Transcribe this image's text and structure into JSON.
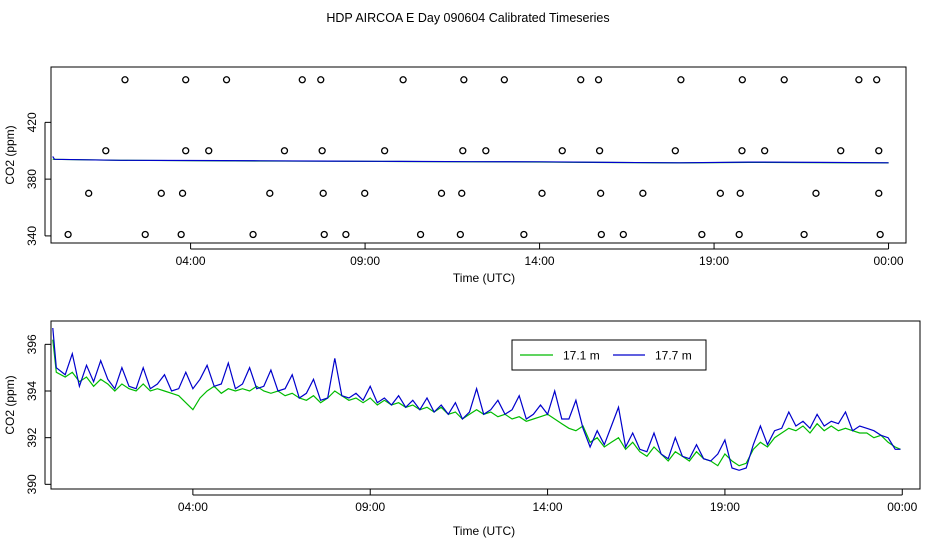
{
  "figure_title": "HDP AIRCOA E  Day 090604  Calibrated Timeseries",
  "chart_data": [
    {
      "type": "line",
      "title": "",
      "xlabel": "Time (UTC)",
      "ylabel": "CO2 (ppm)",
      "x_unit": "hours (UTC)",
      "xlim": [
        0.0,
        24.5
      ],
      "ylim": [
        335,
        459
      ],
      "x_ticks": [
        {
          "value": 4.0,
          "label": "04:00"
        },
        {
          "value": 9.0,
          "label": "09:00"
        },
        {
          "value": 14.0,
          "label": "14:00"
        },
        {
          "value": 19.0,
          "label": "19:00"
        },
        {
          "value": 24.0,
          "label": "00:00"
        }
      ],
      "y_ticks": [
        {
          "value": 340,
          "label": "340"
        },
        {
          "value": 380,
          "label": "380"
        },
        {
          "value": 420,
          "label": "420"
        }
      ],
      "series": [
        {
          "name": "17.1 m",
          "color": "#00bb00",
          "x": [
            0.05,
            2,
            4,
            6,
            8,
            10,
            12,
            14,
            16,
            18,
            20,
            22,
            24
          ],
          "values": [
            394,
            393.3,
            393,
            392.8,
            392.6,
            392.4,
            392.2,
            392.1,
            391.7,
            391.4,
            391.8,
            391.6,
            391.4
          ]
        },
        {
          "name": "17.7 m",
          "color": "#0000cc",
          "x": [
            0.05,
            0.1,
            2,
            4,
            6,
            8,
            10,
            12,
            14,
            16,
            18,
            20,
            22,
            24
          ],
          "values": [
            396,
            394,
            393.3,
            393.1,
            392.9,
            392.7,
            392.5,
            392.3,
            392.2,
            391.8,
            391.5,
            392.0,
            391.8,
            391.5
          ]
        }
      ],
      "calibration_points": {
        "symbol": "circle",
        "x": [
          2.12,
          3.86,
          5.03,
          7.2,
          7.73,
          10.09,
          11.83,
          12.99,
          15.18,
          15.69,
          18.05,
          19.81,
          21.01,
          23.15,
          23.66,
          1.57,
          3.86,
          4.52,
          6.69,
          7.77,
          9.56,
          11.8,
          12.46,
          14.65,
          15.72,
          17.89,
          19.8,
          20.45,
          22.63,
          23.72,
          1.08,
          3.16,
          3.77,
          6.27,
          7.8,
          8.99,
          11.19,
          11.77,
          14.07,
          15.75,
          16.96,
          19.18,
          19.75,
          21.92,
          23.72,
          0.49,
          2.7,
          3.73,
          5.79,
          7.83,
          8.45,
          10.59,
          11.73,
          13.55,
          15.77,
          16.4,
          18.65,
          19.72,
          21.58,
          23.76
        ],
        "values": [
          450,
          450,
          450,
          450,
          450,
          450,
          450,
          450,
          450,
          450,
          450,
          450,
          450,
          450,
          450,
          400,
          400,
          400,
          400,
          400,
          400,
          400,
          400,
          400,
          400,
          400,
          400,
          400,
          400,
          400,
          370,
          370,
          370,
          370,
          370,
          370,
          370,
          370,
          370,
          370,
          370,
          370,
          370,
          370,
          370,
          341,
          341,
          341,
          341,
          341,
          341,
          341,
          341,
          341,
          341,
          341,
          341,
          341,
          341,
          341
        ]
      }
    },
    {
      "type": "line",
      "title": "",
      "xlabel": "Time (UTC)",
      "ylabel": "CO2 (ppm)",
      "x_unit": "hours (UTC)",
      "xlim": [
        0.0,
        24.5
      ],
      "ylim": [
        389.8,
        397.0
      ],
      "x_ticks": [
        {
          "value": 4.0,
          "label": "04:00"
        },
        {
          "value": 9.0,
          "label": "09:00"
        },
        {
          "value": 14.0,
          "label": "14:00"
        },
        {
          "value": 19.0,
          "label": "19:00"
        },
        {
          "value": 24.0,
          "label": "00:00"
        }
      ],
      "y_ticks": [
        {
          "value": 390,
          "label": "390"
        },
        {
          "value": 392,
          "label": "392"
        },
        {
          "value": 394,
          "label": "394"
        },
        {
          "value": 396,
          "label": "396"
        }
      ],
      "legend": {
        "position": "top-right",
        "entries": [
          {
            "label": "17.1 m",
            "color": "#00bb00"
          },
          {
            "label": "17.7 m",
            "color": "#0000cc"
          }
        ]
      },
      "series": [
        {
          "name": "17.1 m",
          "color": "#00bb00",
          "x": [
            0.05,
            0.15,
            0.4,
            0.6,
            0.8,
            1.0,
            1.2,
            1.4,
            1.6,
            1.8,
            2.0,
            2.2,
            2.4,
            2.6,
            2.8,
            3.0,
            3.2,
            3.4,
            3.6,
            3.8,
            4.0,
            4.2,
            4.4,
            4.6,
            4.8,
            5.0,
            5.2,
            5.4,
            5.6,
            5.8,
            6.0,
            6.2,
            6.4,
            6.6,
            6.8,
            7.0,
            7.2,
            7.4,
            7.6,
            7.8,
            8.0,
            8.2,
            8.4,
            8.6,
            8.8,
            9.0,
            9.2,
            9.4,
            9.6,
            9.8,
            10.0,
            10.2,
            10.4,
            10.6,
            10.8,
            11.0,
            11.2,
            11.4,
            11.6,
            11.8,
            12.0,
            12.2,
            12.4,
            12.6,
            12.8,
            13.0,
            13.2,
            13.4,
            13.6,
            13.8,
            14.0,
            14.2,
            14.4,
            14.6,
            14.8,
            15.0,
            15.2,
            15.4,
            15.6,
            15.8,
            16.0,
            16.2,
            16.4,
            16.6,
            16.8,
            17.0,
            17.2,
            17.4,
            17.6,
            17.8,
            18.0,
            18.2,
            18.4,
            18.6,
            18.8,
            19.0,
            19.2,
            19.4,
            19.6,
            19.8,
            20.0,
            20.2,
            20.4,
            20.6,
            20.8,
            21.0,
            21.2,
            21.4,
            21.6,
            21.8,
            22.0,
            22.2,
            22.4,
            22.6,
            22.8,
            23.0,
            23.2,
            23.4,
            23.6,
            23.8,
            23.95
          ],
          "values": [
            396.2,
            394.8,
            394.6,
            394.8,
            394.4,
            394.6,
            394.2,
            394.5,
            394.3,
            394.0,
            394.3,
            394.1,
            394.0,
            394.3,
            394.0,
            394.1,
            394.0,
            393.9,
            393.8,
            393.5,
            393.2,
            393.7,
            394.0,
            394.2,
            393.9,
            394.1,
            394.0,
            394.1,
            394.0,
            394.2,
            394.0,
            393.9,
            394.0,
            393.8,
            393.9,
            393.7,
            393.6,
            393.8,
            393.5,
            393.7,
            394.0,
            393.8,
            393.6,
            393.7,
            393.5,
            393.7,
            393.4,
            393.6,
            393.4,
            393.5,
            393.3,
            393.4,
            393.2,
            393.3,
            393.1,
            393.3,
            393.0,
            393.1,
            392.8,
            393.0,
            393.2,
            393.0,
            393.1,
            392.9,
            393.0,
            392.8,
            392.9,
            392.7,
            392.8,
            392.9,
            393.0,
            392.8,
            392.6,
            392.4,
            392.3,
            392.5,
            391.8,
            392.0,
            391.6,
            391.8,
            392.0,
            391.5,
            391.8,
            391.4,
            391.2,
            391.6,
            391.3,
            391.0,
            391.4,
            391.2,
            391.0,
            391.4,
            391.1,
            391.0,
            390.8,
            391.3,
            391.0,
            390.8,
            390.9,
            391.5,
            391.8,
            391.6,
            392.0,
            392.2,
            392.4,
            392.3,
            392.5,
            392.2,
            392.6,
            392.3,
            392.5,
            392.3,
            392.4,
            392.3,
            392.2,
            392.2,
            392.0,
            392.1,
            391.8,
            391.6,
            391.5
          ]
        },
        {
          "name": "17.7 m",
          "color": "#0000cc",
          "x": [
            0.05,
            0.15,
            0.4,
            0.6,
            0.8,
            1.0,
            1.2,
            1.4,
            1.6,
            1.8,
            2.0,
            2.2,
            2.4,
            2.6,
            2.8,
            3.0,
            3.2,
            3.4,
            3.6,
            3.8,
            4.0,
            4.2,
            4.4,
            4.6,
            4.8,
            5.0,
            5.2,
            5.4,
            5.6,
            5.8,
            6.0,
            6.2,
            6.4,
            6.6,
            6.8,
            7.0,
            7.2,
            7.4,
            7.6,
            7.8,
            8.0,
            8.2,
            8.4,
            8.6,
            8.8,
            9.0,
            9.2,
            9.4,
            9.6,
            9.8,
            10.0,
            10.2,
            10.4,
            10.6,
            10.8,
            11.0,
            11.2,
            11.4,
            11.6,
            11.8,
            12.0,
            12.2,
            12.4,
            12.6,
            12.8,
            13.0,
            13.2,
            13.4,
            13.6,
            13.8,
            14.0,
            14.2,
            14.4,
            14.6,
            14.8,
            15.0,
            15.2,
            15.4,
            15.6,
            15.8,
            16.0,
            16.2,
            16.4,
            16.6,
            16.8,
            17.0,
            17.2,
            17.4,
            17.6,
            17.8,
            18.0,
            18.2,
            18.4,
            18.6,
            18.8,
            19.0,
            19.2,
            19.4,
            19.6,
            19.8,
            20.0,
            20.2,
            20.4,
            20.6,
            20.8,
            21.0,
            21.2,
            21.4,
            21.6,
            21.8,
            22.0,
            22.2,
            22.4,
            22.6,
            22.8,
            23.0,
            23.2,
            23.4,
            23.6,
            23.8,
            23.95
          ],
          "values": [
            396.7,
            395.0,
            394.7,
            395.6,
            394.2,
            395.1,
            394.4,
            395.3,
            394.5,
            394.1,
            395.0,
            394.2,
            394.1,
            395.0,
            394.1,
            394.3,
            394.7,
            394.0,
            394.1,
            394.8,
            394.1,
            394.5,
            395.1,
            394.2,
            394.3,
            395.2,
            394.1,
            394.3,
            395.0,
            394.1,
            394.2,
            394.9,
            394.0,
            394.1,
            394.7,
            393.7,
            393.9,
            394.5,
            393.6,
            393.7,
            395.4,
            393.8,
            393.7,
            393.9,
            393.6,
            394.2,
            393.5,
            393.7,
            393.4,
            393.8,
            393.3,
            393.6,
            393.2,
            393.7,
            393.1,
            393.4,
            393.0,
            393.5,
            392.8,
            393.1,
            394.1,
            393.0,
            393.2,
            393.6,
            393.0,
            393.2,
            393.8,
            392.8,
            393.0,
            393.4,
            393.0,
            394.0,
            392.8,
            392.8,
            393.6,
            392.4,
            391.6,
            392.3,
            391.7,
            392.5,
            393.3,
            391.6,
            392.2,
            391.5,
            391.4,
            392.2,
            391.3,
            391.1,
            392.0,
            391.2,
            391.1,
            391.7,
            391.1,
            391.0,
            391.3,
            391.9,
            390.7,
            390.6,
            390.7,
            391.7,
            392.5,
            391.7,
            392.3,
            392.4,
            393.1,
            392.5,
            392.7,
            392.4,
            393.0,
            392.5,
            392.7,
            392.6,
            393.1,
            392.3,
            392.5,
            392.4,
            392.3,
            392.1,
            392.0,
            391.5,
            391.5
          ]
        }
      ]
    }
  ]
}
